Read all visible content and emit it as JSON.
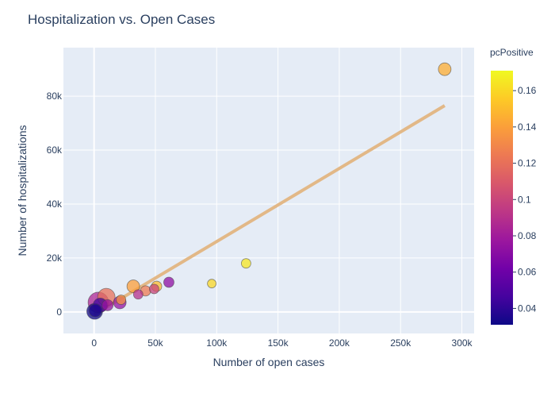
{
  "chart_data": {
    "type": "scatter",
    "title": "Hospitalization vs. Open Cases",
    "xlabel": "Number of open cases",
    "ylabel": "Number of hospitalizations",
    "xlim": [
      -25000,
      310000
    ],
    "ylim": [
      -8000,
      98000
    ],
    "x_ticks": [
      0,
      50000,
      100000,
      150000,
      200000,
      250000,
      300000
    ],
    "x_tick_labels": [
      "0",
      "50k",
      "100k",
      "150k",
      "200k",
      "250k",
      "300k"
    ],
    "y_ticks": [
      0,
      20000,
      40000,
      60000,
      80000
    ],
    "y_tick_labels": [
      "0",
      "20k",
      "40k",
      "60k",
      "80k"
    ],
    "grid": true,
    "colorbar": {
      "title": "pcPositive",
      "range": [
        0.031,
        0.171
      ],
      "ticks": [
        0.04,
        0.06,
        0.08,
        0.1,
        0.12,
        0.14,
        0.16
      ],
      "tick_labels": [
        "0.04",
        "0.06",
        "0.08",
        "0.1",
        "0.12",
        "0.14",
        "0.16"
      ],
      "colors": [
        "#0d0887",
        "#46039f",
        "#7201a8",
        "#9c179e",
        "#bd3786",
        "#d8576b",
        "#ed7953",
        "#fb9f3a",
        "#fdca26",
        "#f0f921"
      ]
    },
    "points": [
      {
        "x": 286000,
        "y": 90000,
        "c": 0.145,
        "r": 8
      },
      {
        "x": 124000,
        "y": 18000,
        "c": 0.165,
        "r": 6
      },
      {
        "x": 96000,
        "y": 10500,
        "c": 0.16,
        "r": 5.5
      },
      {
        "x": 61000,
        "y": 11000,
        "c": 0.072,
        "r": 6.5
      },
      {
        "x": 51000,
        "y": 9500,
        "c": 0.15,
        "r": 6.5
      },
      {
        "x": 49000,
        "y": 8500,
        "c": 0.1,
        "r": 6
      },
      {
        "x": 42000,
        "y": 7800,
        "c": 0.125,
        "r": 6.5
      },
      {
        "x": 36000,
        "y": 6500,
        "c": 0.09,
        "r": 6
      },
      {
        "x": 32000,
        "y": 9500,
        "c": 0.14,
        "r": 8
      },
      {
        "x": 22000,
        "y": 4500,
        "c": 0.135,
        "r": 6
      },
      {
        "x": 21000,
        "y": 3500,
        "c": 0.075,
        "r": 8
      },
      {
        "x": 11000,
        "y": 2500,
        "c": 0.075,
        "r": 7
      },
      {
        "x": 10000,
        "y": 5500,
        "c": 0.12,
        "r": 11
      },
      {
        "x": 5000,
        "y": 2500,
        "c": 0.045,
        "r": 9
      },
      {
        "x": 3500,
        "y": 3500,
        "c": 0.085,
        "r": 13
      },
      {
        "x": 1000,
        "y": 500,
        "c": 0.035,
        "r": 8
      },
      {
        "x": 500,
        "y": 200,
        "c": 0.032,
        "r": 10
      }
    ],
    "trendline": {
      "x": [
        0,
        286000
      ],
      "y": [
        -1000,
        76500
      ],
      "color": "#e2b887"
    }
  }
}
